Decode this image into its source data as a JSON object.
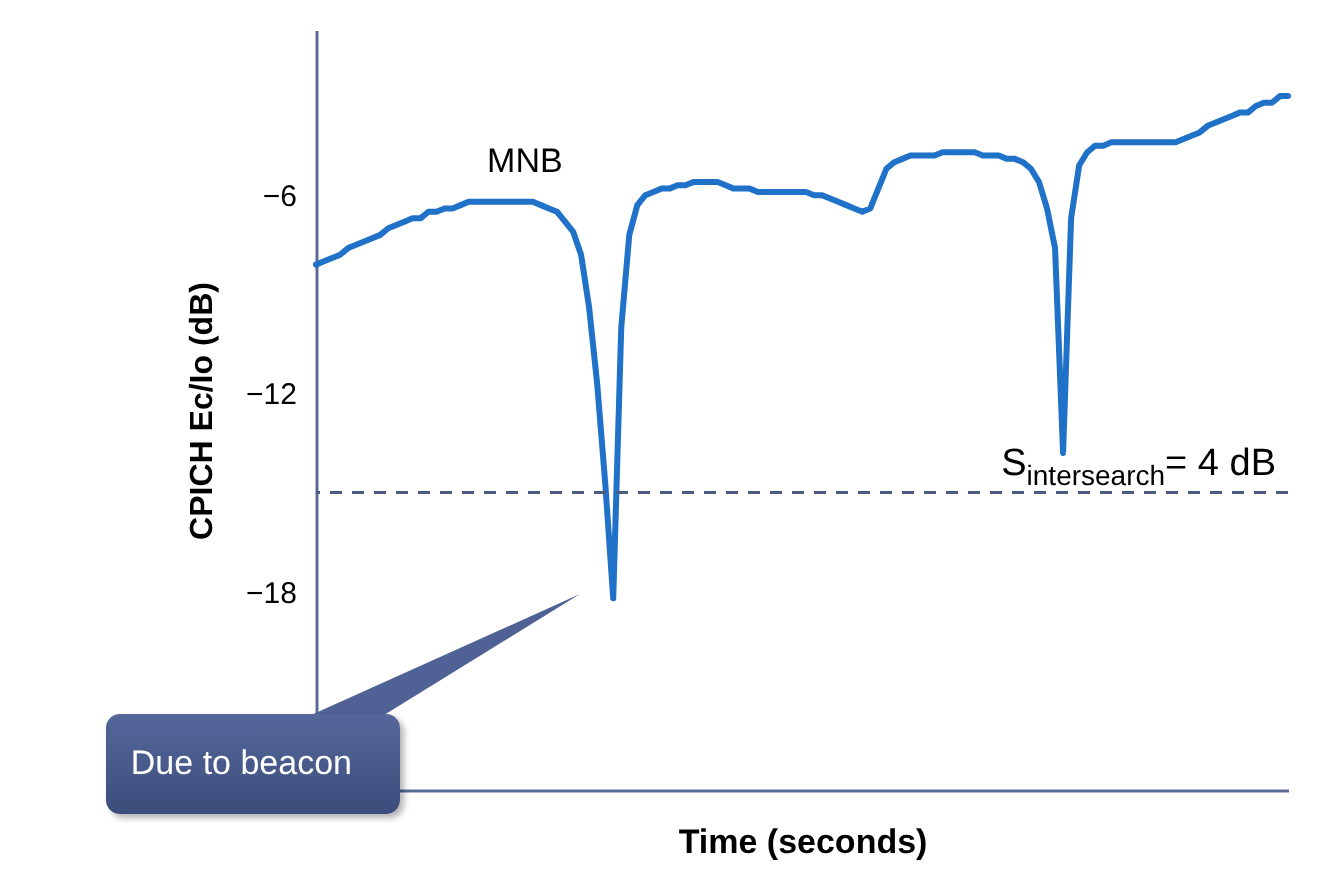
{
  "chart_data": {
    "type": "line",
    "xlabel": "Time (seconds)",
    "ylabel": "CPICH Ec/Io (dB)",
    "categories": [
      null,
      null,
      null,
      null,
      null,
      null,
      null,
      null,
      null,
      null,
      null,
      null,
      null,
      null,
      null,
      null,
      null,
      null,
      null,
      null,
      null,
      null,
      null,
      null,
      null,
      null,
      null,
      null,
      null,
      null,
      null,
      null,
      null,
      null,
      null,
      null,
      null,
      null,
      null,
      null,
      null,
      null,
      null,
      null,
      null,
      null,
      null,
      null,
      null,
      null,
      null,
      null,
      null,
      null,
      null,
      null,
      null,
      null,
      null,
      null,
      null,
      null,
      null,
      null,
      null,
      null,
      null,
      null,
      null,
      null,
      null,
      null,
      null,
      null,
      null,
      null,
      null,
      null,
      null,
      null,
      null,
      null,
      null,
      null,
      null,
      null,
      null,
      null,
      null,
      null,
      null,
      null,
      null,
      null,
      null,
      null,
      null,
      null,
      null,
      null,
      null,
      null,
      null,
      null,
      null,
      null,
      null,
      null,
      null,
      null,
      null,
      null,
      null,
      null,
      null,
      null,
      null,
      null,
      null,
      null,
      null,
      null
    ],
    "series": [
      {
        "name": "MNB",
        "color": "#1f72c8",
        "values": [
          -8.1,
          -8.0,
          -7.9,
          -7.8,
          -7.6,
          -7.5,
          -7.4,
          -7.3,
          -7.2,
          -7.0,
          -6.9,
          -6.8,
          -6.7,
          -6.7,
          -6.5,
          -6.5,
          -6.4,
          -6.4,
          -6.3,
          -6.2,
          -6.2,
          -6.2,
          -6.2,
          -6.2,
          -6.2,
          -6.2,
          -6.2,
          -6.2,
          -6.3,
          -6.4,
          -6.5,
          -6.8,
          -7.1,
          -7.8,
          -9.4,
          -11.7,
          -14.7,
          -18.2,
          -10.0,
          -7.2,
          -6.3,
          -6.0,
          -5.9,
          -5.8,
          -5.8,
          -5.7,
          -5.7,
          -5.6,
          -5.6,
          -5.6,
          -5.6,
          -5.7,
          -5.8,
          -5.8,
          -5.8,
          -5.9,
          -5.9,
          -5.9,
          -5.9,
          -5.9,
          -5.9,
          -5.9,
          -6.0,
          -6.0,
          -6.1,
          -6.2,
          -6.3,
          -6.4,
          -6.5,
          -6.4,
          -5.8,
          -5.2,
          -5.0,
          -4.9,
          -4.8,
          -4.8,
          -4.8,
          -4.8,
          -4.7,
          -4.7,
          -4.7,
          -4.7,
          -4.7,
          -4.8,
          -4.8,
          -4.8,
          -4.9,
          -4.9,
          -5.0,
          -5.2,
          -5.6,
          -6.4,
          -7.6,
          -13.8,
          -6.7,
          -5.1,
          -4.7,
          -4.5,
          -4.5,
          -4.4,
          -4.4,
          -4.4,
          -4.4,
          -4.4,
          -4.4,
          -4.4,
          -4.4,
          -4.4,
          -4.3,
          -4.2,
          -4.1,
          -3.9,
          -3.8,
          -3.7,
          -3.6,
          -3.5,
          -3.5,
          -3.3,
          -3.2,
          -3.2,
          -3.0,
          -3.0
        ]
      }
    ],
    "ylim": [
      -24,
      -1
    ],
    "yticks": [
      -6,
      -12,
      -18
    ],
    "tick_labels": "y",
    "grid": false,
    "ref_lines": [
      {
        "axis": "y",
        "value": -15,
        "color": "#4a5a80",
        "line_style": "dashed"
      }
    ],
    "annotations": [
      {
        "text": "S$_{intersearch}$= 4 dB",
        "y": -15
      },
      "Due to beacon"
    ]
  }
}
